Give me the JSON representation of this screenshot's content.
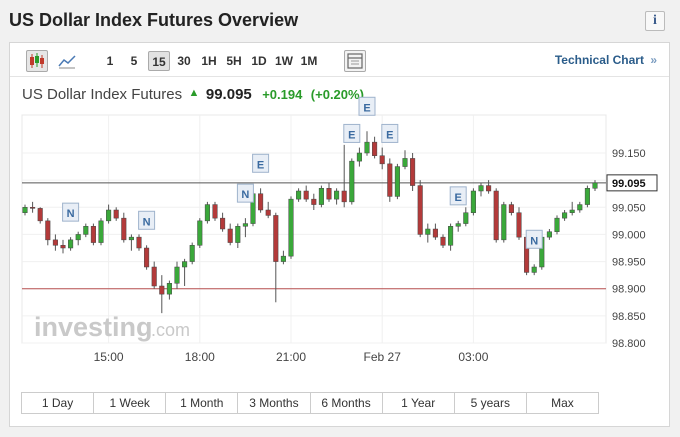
{
  "title": "US Dollar Index Futures Overview",
  "toolbar": {
    "intervals": [
      "1",
      "5",
      "15",
      "30",
      "1H",
      "5H",
      "1D",
      "1W",
      "1M"
    ],
    "active_interval": "15",
    "technical_chart_label": "Technical Chart",
    "technical_chart_arrow": "»"
  },
  "quote": {
    "name": "US Dollar Index Futures",
    "last": "99.095",
    "change": "+0.194",
    "change_pct": "(+0.20%)"
  },
  "watermark": {
    "brand": "investing",
    "suffix": ".com"
  },
  "range_buttons": [
    "1 Day",
    "1 Week",
    "1 Month",
    "3 Months",
    "6 Months",
    "1 Year",
    "5 years",
    "Max"
  ],
  "chart_data": {
    "type": "candlestick",
    "ylim": [
      98.8,
      99.22
    ],
    "y_ticks": [
      98.8,
      98.85,
      98.9,
      98.95,
      99.0,
      99.05,
      99.1,
      99.15
    ],
    "y_tick_labels": [
      "98.800",
      "98.850",
      "98.900",
      "98.950",
      "99.000",
      "99.050",
      "99.100",
      "99.150"
    ],
    "last_price_label": "99.095",
    "last_price": 99.095,
    "reference_line": 98.9,
    "x_ticks": [
      {
        "label": "15:00",
        "index": 11
      },
      {
        "label": "18:00",
        "index": 23
      },
      {
        "label": "21:00",
        "index": 35
      },
      {
        "label": "Feb 27",
        "index": 47
      },
      {
        "label": "03:00",
        "index": 59
      }
    ],
    "candles": [
      {
        "o": 99.04,
        "h": 99.055,
        "l": 99.035,
        "c": 99.05
      },
      {
        "o": 99.05,
        "h": 99.06,
        "l": 99.04,
        "c": 99.048
      },
      {
        "o": 99.048,
        "h": 99.05,
        "l": 99.02,
        "c": 99.025
      },
      {
        "o": 99.025,
        "h": 99.03,
        "l": 98.98,
        "c": 98.99
      },
      {
        "o": 98.99,
        "h": 99.0,
        "l": 98.97,
        "c": 98.98
      },
      {
        "o": 98.98,
        "h": 98.99,
        "l": 98.965,
        "c": 98.975
      },
      {
        "o": 98.975,
        "h": 98.995,
        "l": 98.97,
        "c": 98.99
      },
      {
        "o": 98.99,
        "h": 99.005,
        "l": 98.98,
        "c": 99.0
      },
      {
        "o": 99.0,
        "h": 99.02,
        "l": 98.995,
        "c": 99.015
      },
      {
        "o": 99.015,
        "h": 99.02,
        "l": 98.98,
        "c": 98.985
      },
      {
        "o": 98.985,
        "h": 99.03,
        "l": 98.98,
        "c": 99.025
      },
      {
        "o": 99.025,
        "h": 99.055,
        "l": 99.02,
        "c": 99.045
      },
      {
        "o": 99.045,
        "h": 99.05,
        "l": 99.025,
        "c": 99.03
      },
      {
        "o": 99.03,
        "h": 99.04,
        "l": 98.985,
        "c": 98.99
      },
      {
        "o": 98.99,
        "h": 99.0,
        "l": 98.97,
        "c": 98.995
      },
      {
        "o": 98.995,
        "h": 99.0,
        "l": 98.97,
        "c": 98.975
      },
      {
        "o": 98.975,
        "h": 98.98,
        "l": 98.935,
        "c": 98.94
      },
      {
        "o": 98.94,
        "h": 98.95,
        "l": 98.9,
        "c": 98.905
      },
      {
        "o": 98.905,
        "h": 98.925,
        "l": 98.855,
        "c": 98.89
      },
      {
        "o": 98.89,
        "h": 98.915,
        "l": 98.88,
        "c": 98.91
      },
      {
        "o": 98.91,
        "h": 98.95,
        "l": 98.9,
        "c": 98.94
      },
      {
        "o": 98.94,
        "h": 98.955,
        "l": 98.905,
        "c": 98.95
      },
      {
        "o": 98.95,
        "h": 98.985,
        "l": 98.945,
        "c": 98.98
      },
      {
        "o": 98.98,
        "h": 99.03,
        "l": 98.975,
        "c": 99.025
      },
      {
        "o": 99.025,
        "h": 99.06,
        "l": 99.02,
        "c": 99.055
      },
      {
        "o": 99.055,
        "h": 99.06,
        "l": 99.025,
        "c": 99.03
      },
      {
        "o": 99.03,
        "h": 99.04,
        "l": 99.005,
        "c": 99.01
      },
      {
        "o": 99.01,
        "h": 99.02,
        "l": 98.98,
        "c": 98.985
      },
      {
        "o": 98.985,
        "h": 99.02,
        "l": 98.975,
        "c": 99.015
      },
      {
        "o": 99.015,
        "h": 99.03,
        "l": 98.995,
        "c": 99.02
      },
      {
        "o": 99.02,
        "h": 99.08,
        "l": 99.015,
        "c": 99.075
      },
      {
        "o": 99.075,
        "h": 99.085,
        "l": 99.04,
        "c": 99.045
      },
      {
        "o": 99.045,
        "h": 99.06,
        "l": 99.03,
        "c": 99.035
      },
      {
        "o": 99.035,
        "h": 99.04,
        "l": 98.875,
        "c": 98.95
      },
      {
        "o": 98.95,
        "h": 98.97,
        "l": 98.945,
        "c": 98.96
      },
      {
        "o": 98.96,
        "h": 99.07,
        "l": 98.955,
        "c": 99.065
      },
      {
        "o": 99.065,
        "h": 99.085,
        "l": 99.06,
        "c": 99.08
      },
      {
        "o": 99.08,
        "h": 99.09,
        "l": 99.06,
        "c": 99.065
      },
      {
        "o": 99.065,
        "h": 99.075,
        "l": 99.045,
        "c": 99.055
      },
      {
        "o": 99.055,
        "h": 99.09,
        "l": 99.05,
        "c": 99.085
      },
      {
        "o": 99.085,
        "h": 99.095,
        "l": 99.06,
        "c": 99.065
      },
      {
        "o": 99.065,
        "h": 99.085,
        "l": 99.055,
        "c": 99.08
      },
      {
        "o": 99.08,
        "h": 99.165,
        "l": 99.05,
        "c": 99.06
      },
      {
        "o": 99.06,
        "h": 99.14,
        "l": 99.055,
        "c": 99.135
      },
      {
        "o": 99.135,
        "h": 99.16,
        "l": 99.125,
        "c": 99.15
      },
      {
        "o": 99.15,
        "h": 99.19,
        "l": 99.145,
        "c": 99.17
      },
      {
        "o": 99.17,
        "h": 99.18,
        "l": 99.14,
        "c": 99.145
      },
      {
        "o": 99.145,
        "h": 99.16,
        "l": 99.12,
        "c": 99.13
      },
      {
        "o": 99.13,
        "h": 99.14,
        "l": 99.06,
        "c": 99.07
      },
      {
        "o": 99.07,
        "h": 99.13,
        "l": 99.065,
        "c": 99.125
      },
      {
        "o": 99.125,
        "h": 99.155,
        "l": 99.12,
        "c": 99.14
      },
      {
        "o": 99.14,
        "h": 99.15,
        "l": 99.08,
        "c": 99.09
      },
      {
        "o": 99.09,
        "h": 99.1,
        "l": 98.995,
        "c": 99.0
      },
      {
        "o": 99.0,
        "h": 99.02,
        "l": 98.985,
        "c": 99.01
      },
      {
        "o": 99.01,
        "h": 99.02,
        "l": 98.99,
        "c": 98.995
      },
      {
        "o": 98.995,
        "h": 99.0,
        "l": 98.975,
        "c": 98.98
      },
      {
        "o": 98.98,
        "h": 99.02,
        "l": 98.97,
        "c": 99.015
      },
      {
        "o": 99.015,
        "h": 99.025,
        "l": 99.005,
        "c": 99.02
      },
      {
        "o": 99.02,
        "h": 99.05,
        "l": 99.015,
        "c": 99.04
      },
      {
        "o": 99.04,
        "h": 99.085,
        "l": 99.035,
        "c": 99.08
      },
      {
        "o": 99.08,
        "h": 99.095,
        "l": 99.07,
        "c": 99.09
      },
      {
        "o": 99.09,
        "h": 99.1,
        "l": 99.075,
        "c": 99.08
      },
      {
        "o": 99.08,
        "h": 99.085,
        "l": 98.985,
        "c": 98.99
      },
      {
        "o": 98.99,
        "h": 99.06,
        "l": 98.985,
        "c": 99.055
      },
      {
        "o": 99.055,
        "h": 99.06,
        "l": 99.035,
        "c": 99.04
      },
      {
        "o": 99.04,
        "h": 99.05,
        "l": 98.99,
        "c": 98.995
      },
      {
        "o": 98.995,
        "h": 99.0,
        "l": 98.925,
        "c": 98.93
      },
      {
        "o": 98.93,
        "h": 98.945,
        "l": 98.925,
        "c": 98.94
      },
      {
        "o": 98.94,
        "h": 99.0,
        "l": 98.935,
        "c": 98.995
      },
      {
        "o": 98.995,
        "h": 99.01,
        "l": 98.99,
        "c": 99.005
      },
      {
        "o": 99.005,
        "h": 99.035,
        "l": 99.0,
        "c": 99.03
      },
      {
        "o": 99.03,
        "h": 99.045,
        "l": 99.025,
        "c": 99.04
      },
      {
        "o": 99.04,
        "h": 99.06,
        "l": 99.035,
        "c": 99.045
      },
      {
        "o": 99.045,
        "h": 99.06,
        "l": 99.04,
        "c": 99.055
      },
      {
        "o": 99.055,
        "h": 99.09,
        "l": 99.05,
        "c": 99.085
      },
      {
        "o": 99.085,
        "h": 99.1,
        "l": 99.08,
        "c": 99.095
      }
    ],
    "event_markers": [
      {
        "label": "N",
        "index": 6
      },
      {
        "label": "N",
        "index": 16
      },
      {
        "label": "N",
        "index": 29
      },
      {
        "label": "E",
        "index": 31
      },
      {
        "label": "E",
        "index": 43
      },
      {
        "label": "E",
        "index": 45
      },
      {
        "label": "E",
        "index": 48
      },
      {
        "label": "E",
        "index": 57
      },
      {
        "label": "N",
        "index": 67
      }
    ]
  }
}
